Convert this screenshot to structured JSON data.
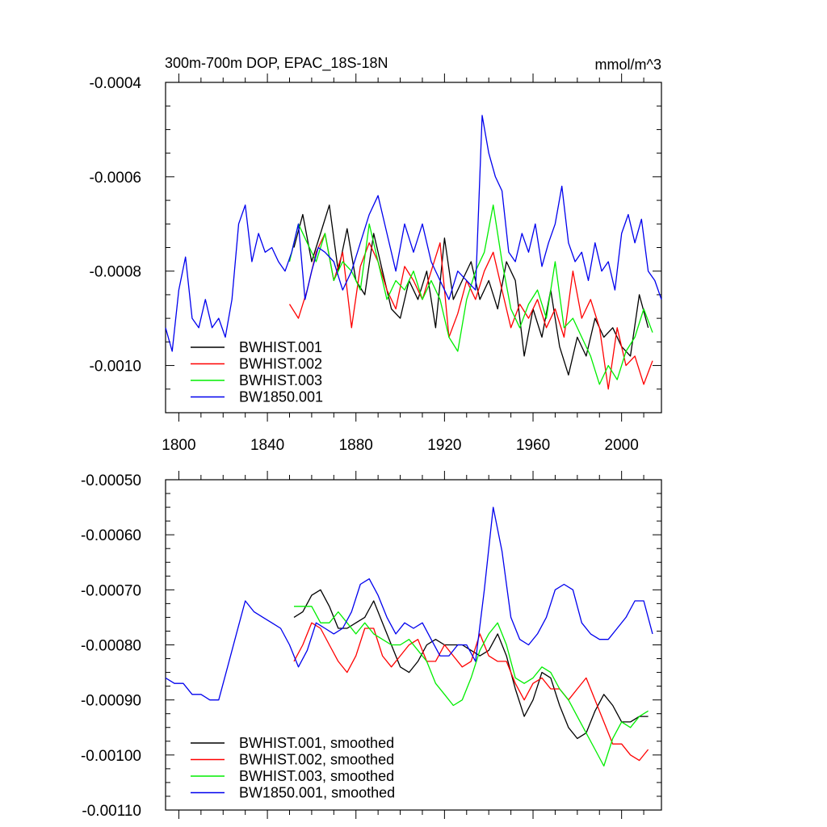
{
  "chart_data": [
    {
      "type": "line",
      "title": "300m-700m DOP, EPAC_18S-18N",
      "units": "mmol/m^3",
      "xlabel": "",
      "ylabel": "",
      "xlim": [
        1794,
        2018
      ],
      "ylim": [
        -0.0011,
        -0.0004
      ],
      "x_ticks": [
        1800,
        1840,
        1880,
        1920,
        1960,
        2000
      ],
      "x_tick_labels": [
        "1800",
        "1840",
        "1880",
        "1920",
        "1960",
        "2000"
      ],
      "y_ticks": [
        -0.0004,
        -0.0006,
        -0.0008,
        -0.001
      ],
      "y_tick_labels": [
        "-0.0004",
        "-0.0006",
        "-0.0008",
        "-0.0010"
      ],
      "legend_position": "bottom-left",
      "series": [
        {
          "name": "BWHIST.001",
          "color": "#000000",
          "x": [
            1852,
            1856,
            1860,
            1864,
            1868,
            1872,
            1876,
            1880,
            1884,
            1888,
            1892,
            1896,
            1900,
            1904,
            1908,
            1912,
            1916,
            1920,
            1924,
            1928,
            1932,
            1936,
            1940,
            1944,
            1948,
            1952,
            1956,
            1960,
            1964,
            1968,
            1972,
            1976,
            1980,
            1984,
            1988,
            1992,
            1996,
            2000,
            2004,
            2008,
            2012
          ],
          "y": [
            -0.00075,
            -0.00068,
            -0.00078,
            -0.00072,
            -0.00066,
            -0.0008,
            -0.00071,
            -0.00082,
            -0.00085,
            -0.00072,
            -0.0008,
            -0.00088,
            -0.0009,
            -0.00082,
            -0.00086,
            -0.0008,
            -0.00092,
            -0.00073,
            -0.00086,
            -0.00082,
            -0.00078,
            -0.00086,
            -0.00082,
            -0.00088,
            -0.00078,
            -0.00082,
            -0.00098,
            -0.00088,
            -0.00094,
            -0.00084,
            -0.00096,
            -0.00102,
            -0.00094,
            -0.00098,
            -0.0009,
            -0.00094,
            -0.00092,
            -0.00096,
            -0.00098,
            -0.00085,
            -0.00092
          ]
        },
        {
          "name": "BWHIST.002",
          "color": "#ff0000",
          "x": [
            1850,
            1854,
            1858,
            1862,
            1866,
            1870,
            1874,
            1878,
            1882,
            1886,
            1890,
            1894,
            1898,
            1902,
            1906,
            1910,
            1914,
            1918,
            1922,
            1926,
            1930,
            1934,
            1938,
            1942,
            1946,
            1950,
            1954,
            1958,
            1962,
            1966,
            1970,
            1974,
            1978,
            1982,
            1986,
            1990,
            1994,
            1998,
            2002,
            2006,
            2010,
            2014
          ],
          "y": [
            -0.00087,
            -0.0009,
            -0.00084,
            -0.00076,
            -0.00072,
            -0.00082,
            -0.00076,
            -0.00092,
            -0.00079,
            -0.00074,
            -0.00078,
            -0.00084,
            -0.00088,
            -0.00079,
            -0.00082,
            -0.00086,
            -0.0008,
            -0.00074,
            -0.00094,
            -0.00089,
            -0.00082,
            -0.00086,
            -0.0008,
            -0.00076,
            -0.00084,
            -0.00092,
            -0.00087,
            -0.0009,
            -0.00086,
            -0.00092,
            -0.00088,
            -0.00094,
            -0.0008,
            -0.0009,
            -0.00086,
            -0.00092,
            -0.00105,
            -0.00092,
            -0.001,
            -0.00098,
            -0.00104,
            -0.00099
          ]
        },
        {
          "name": "BWHIST.003",
          "color": "#00ee00",
          "x": [
            1850,
            1854,
            1858,
            1862,
            1866,
            1870,
            1874,
            1878,
            1882,
            1886,
            1890,
            1894,
            1898,
            1902,
            1906,
            1910,
            1914,
            1918,
            1922,
            1926,
            1930,
            1934,
            1938,
            1942,
            1946,
            1950,
            1954,
            1958,
            1962,
            1966,
            1970,
            1974,
            1978,
            1982,
            1986,
            1990,
            1994,
            1998,
            2002,
            2006,
            2010,
            2014
          ],
          "y": [
            -0.00078,
            -0.0007,
            -0.00074,
            -0.00078,
            -0.00072,
            -0.00082,
            -0.00078,
            -0.0008,
            -0.00084,
            -0.0007,
            -0.00078,
            -0.00086,
            -0.00082,
            -0.00084,
            -0.0008,
            -0.00086,
            -0.00082,
            -0.00086,
            -0.00094,
            -0.00097,
            -0.00086,
            -0.0008,
            -0.00076,
            -0.00066,
            -0.00078,
            -0.00088,
            -0.00092,
            -0.00087,
            -0.00084,
            -0.0009,
            -0.00078,
            -0.00092,
            -0.0009,
            -0.00094,
            -0.00098,
            -0.00104,
            -0.001,
            -0.00103,
            -0.00097,
            -0.00094,
            -0.00088,
            -0.00093
          ]
        },
        {
          "name": "BW1850.001",
          "color": "#0000ee",
          "x": [
            1794,
            1797,
            1800,
            1803,
            1806,
            1809,
            1812,
            1815,
            1818,
            1821,
            1824,
            1827,
            1830,
            1833,
            1836,
            1839,
            1842,
            1845,
            1848,
            1851,
            1854,
            1857,
            1860,
            1863,
            1866,
            1870,
            1874,
            1878,
            1882,
            1886,
            1890,
            1894,
            1898,
            1902,
            1906,
            1910,
            1914,
            1918,
            1922,
            1926,
            1930,
            1934,
            1937,
            1940,
            1943,
            1946,
            1949,
            1952,
            1955,
            1958,
            1961,
            1964,
            1967,
            1970,
            1973,
            1976,
            1979,
            1982,
            1985,
            1988,
            1991,
            1994,
            1997,
            2000,
            2003,
            2006,
            2009,
            2012,
            2015,
            2018
          ],
          "y": [
            -0.00092,
            -0.00097,
            -0.00084,
            -0.00077,
            -0.0009,
            -0.00092,
            -0.00086,
            -0.00092,
            -0.0009,
            -0.00094,
            -0.00086,
            -0.0007,
            -0.00066,
            -0.00078,
            -0.00072,
            -0.00076,
            -0.00075,
            -0.00078,
            -0.0008,
            -0.00076,
            -0.0007,
            -0.00086,
            -0.0008,
            -0.00075,
            -0.00076,
            -0.00078,
            -0.00084,
            -0.0008,
            -0.00074,
            -0.00068,
            -0.00064,
            -0.00072,
            -0.0008,
            -0.0007,
            -0.00076,
            -0.0007,
            -0.00078,
            -0.00082,
            -0.00086,
            -0.0008,
            -0.00082,
            -0.00084,
            -0.00047,
            -0.00055,
            -0.0006,
            -0.00063,
            -0.00076,
            -0.00078,
            -0.00072,
            -0.00076,
            -0.0007,
            -0.00079,
            -0.00074,
            -0.0007,
            -0.00062,
            -0.00074,
            -0.00078,
            -0.00076,
            -0.00082,
            -0.00074,
            -0.0008,
            -0.00078,
            -0.00084,
            -0.00072,
            -0.00068,
            -0.00074,
            -0.00069,
            -0.0008,
            -0.00082,
            -0.00086
          ]
        }
      ]
    },
    {
      "type": "line",
      "title": "",
      "xlabel": "",
      "ylabel": "",
      "xlim": [
        1794,
        2018
      ],
      "ylim": [
        -0.0011,
        -0.0005
      ],
      "x_ticks": [
        1800,
        1840,
        1880,
        1920,
        1960,
        2000
      ],
      "y_ticks": [
        -0.0005,
        -0.0006,
        -0.0007,
        -0.0008,
        -0.0009,
        -0.001,
        -0.0011
      ],
      "y_tick_labels": [
        "-0.00050",
        "-0.00060",
        "-0.00070",
        "-0.00080",
        "-0.00090",
        "-0.00100",
        "-0.00110"
      ],
      "legend_position": "bottom-left",
      "series": [
        {
          "name": "BWHIST.001, smoothed",
          "color": "#000000",
          "x": [
            1852,
            1856,
            1860,
            1864,
            1868,
            1872,
            1876,
            1880,
            1884,
            1888,
            1892,
            1896,
            1900,
            1904,
            1908,
            1912,
            1916,
            1920,
            1924,
            1928,
            1932,
            1936,
            1940,
            1944,
            1948,
            1952,
            1956,
            1960,
            1964,
            1968,
            1972,
            1976,
            1980,
            1984,
            1988,
            1992,
            1996,
            2000,
            2004,
            2008,
            2012
          ],
          "y": [
            -0.00075,
            -0.00074,
            -0.00071,
            -0.0007,
            -0.00073,
            -0.00077,
            -0.00077,
            -0.00076,
            -0.00075,
            -0.00072,
            -0.00076,
            -0.0008,
            -0.00084,
            -0.00085,
            -0.00083,
            -0.0008,
            -0.00079,
            -0.0008,
            -0.0008,
            -0.0008,
            -0.00081,
            -0.00082,
            -0.00081,
            -0.00078,
            -0.00082,
            -0.00088,
            -0.00093,
            -0.0009,
            -0.00085,
            -0.00086,
            -0.00091,
            -0.00095,
            -0.00097,
            -0.00096,
            -0.00092,
            -0.00089,
            -0.00091,
            -0.00094,
            -0.00094,
            -0.00093,
            -0.00093
          ]
        },
        {
          "name": "BWHIST.002, smoothed",
          "color": "#ff0000",
          "x": [
            1852,
            1856,
            1860,
            1864,
            1868,
            1872,
            1876,
            1880,
            1884,
            1888,
            1892,
            1896,
            1900,
            1904,
            1908,
            1912,
            1916,
            1920,
            1924,
            1928,
            1932,
            1936,
            1940,
            1944,
            1948,
            1952,
            1956,
            1960,
            1964,
            1968,
            1972,
            1976,
            1980,
            1984,
            1988,
            1992,
            1996,
            2000,
            2004,
            2008,
            2012
          ],
          "y": [
            -0.00083,
            -0.0008,
            -0.00076,
            -0.00077,
            -0.0008,
            -0.00083,
            -0.00085,
            -0.00082,
            -0.00077,
            -0.00077,
            -0.00082,
            -0.00084,
            -0.00082,
            -0.0008,
            -0.00079,
            -0.00083,
            -0.00083,
            -0.0008,
            -0.00082,
            -0.00084,
            -0.00083,
            -0.00078,
            -0.00082,
            -0.00083,
            -0.00083,
            -0.00087,
            -0.0009,
            -0.00087,
            -0.00086,
            -0.00088,
            -0.00088,
            -0.0009,
            -0.00088,
            -0.00086,
            -0.0009,
            -0.00094,
            -0.00098,
            -0.00098,
            -0.001,
            -0.00101,
            -0.00099
          ]
        },
        {
          "name": "BWHIST.003, smoothed",
          "color": "#00ee00",
          "x": [
            1852,
            1856,
            1860,
            1864,
            1868,
            1872,
            1876,
            1880,
            1884,
            1888,
            1892,
            1896,
            1900,
            1904,
            1908,
            1912,
            1916,
            1920,
            1924,
            1928,
            1932,
            1936,
            1940,
            1944,
            1948,
            1952,
            1956,
            1960,
            1964,
            1968,
            1972,
            1976,
            1980,
            1984,
            1988,
            1992,
            1996,
            2000,
            2004,
            2008,
            2012
          ],
          "y": [
            -0.00073,
            -0.00073,
            -0.00073,
            -0.00076,
            -0.00076,
            -0.00074,
            -0.00076,
            -0.00078,
            -0.00076,
            -0.00078,
            -0.00079,
            -0.0008,
            -0.0008,
            -0.00079,
            -0.00081,
            -0.00083,
            -0.00087,
            -0.00089,
            -0.00091,
            -0.0009,
            -0.00086,
            -0.00081,
            -0.00078,
            -0.00076,
            -0.0008,
            -0.00086,
            -0.00087,
            -0.00086,
            -0.00084,
            -0.00085,
            -0.00088,
            -0.0009,
            -0.00093,
            -0.00096,
            -0.00099,
            -0.00102,
            -0.00097,
            -0.00094,
            -0.00095,
            -0.00093,
            -0.00092
          ]
        },
        {
          "name": "BW1850.001, smoothed",
          "color": "#0000ee",
          "x": [
            1794,
            1798,
            1802,
            1806,
            1810,
            1814,
            1818,
            1822,
            1826,
            1830,
            1834,
            1838,
            1842,
            1846,
            1850,
            1854,
            1858,
            1862,
            1866,
            1870,
            1874,
            1878,
            1882,
            1886,
            1890,
            1894,
            1898,
            1902,
            1906,
            1910,
            1914,
            1918,
            1922,
            1926,
            1930,
            1934,
            1938,
            1942,
            1946,
            1950,
            1954,
            1958,
            1962,
            1966,
            1970,
            1974,
            1978,
            1982,
            1986,
            1990,
            1994,
            1998,
            2002,
            2006,
            2010,
            2014
          ],
          "y": [
            -0.00086,
            -0.00087,
            -0.00087,
            -0.00089,
            -0.00089,
            -0.0009,
            -0.0009,
            -0.00084,
            -0.00078,
            -0.00072,
            -0.00074,
            -0.00075,
            -0.00076,
            -0.00077,
            -0.0008,
            -0.00084,
            -0.00081,
            -0.00076,
            -0.00077,
            -0.00078,
            -0.00077,
            -0.00074,
            -0.00069,
            -0.00068,
            -0.00071,
            -0.00075,
            -0.00078,
            -0.00076,
            -0.00077,
            -0.00076,
            -0.00079,
            -0.00082,
            -0.00082,
            -0.0008,
            -0.0008,
            -0.00083,
            -0.0007,
            -0.00055,
            -0.00063,
            -0.00075,
            -0.00079,
            -0.0008,
            -0.00078,
            -0.00075,
            -0.0007,
            -0.00069,
            -0.0007,
            -0.00076,
            -0.00078,
            -0.00079,
            -0.00079,
            -0.00077,
            -0.00075,
            -0.00072,
            -0.00072,
            -0.00078
          ]
        }
      ]
    }
  ]
}
